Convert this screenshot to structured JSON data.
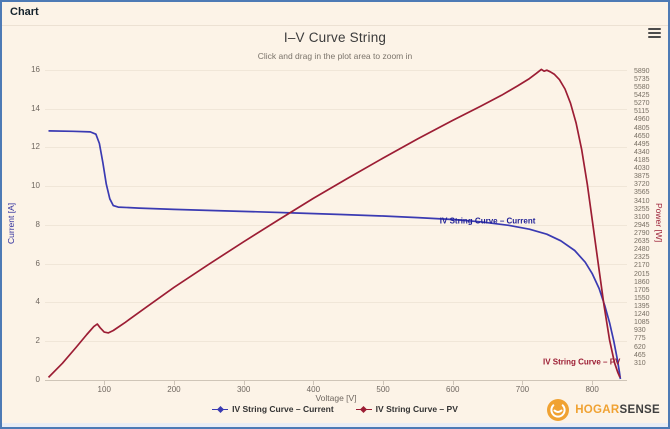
{
  "window": {
    "header_title": "Chart"
  },
  "chart": {
    "title": "I–V Curve String",
    "subtitle": "Click and drag in the plot area to zoom in"
  },
  "chart_data": {
    "type": "line",
    "title": "I–V Curve String",
    "subtitle": "Click and drag in the plot area to zoom in",
    "xlabel": "Voltage [V]",
    "xlim": [
      15,
      850
    ],
    "x_ticks": [
      100,
      200,
      300,
      400,
      500,
      600,
      700,
      800
    ],
    "grid": "horizontal",
    "legend_position": "bottom",
    "y_left": {
      "label": "Current [A]",
      "lim": [
        0,
        16.2
      ],
      "ticks": [
        16,
        14,
        12,
        10,
        8,
        6,
        4,
        2,
        0
      ],
      "title_color": "#2d2d9d"
    },
    "y_right": {
      "label": "Power [W]",
      "lim": [
        0,
        6000
      ],
      "ticks": [
        5890,
        5735,
        5580,
        5425,
        5270,
        5115,
        4960,
        4805,
        4650,
        4495,
        4340,
        4185,
        4030,
        3875,
        3720,
        3565,
        3410,
        3255,
        3100,
        2945,
        2790,
        2635,
        2480,
        2325,
        2170,
        2015,
        1860,
        1705,
        1550,
        1395,
        1240,
        1085,
        930,
        775,
        620,
        465,
        310
      ],
      "title_color": "#9c2038"
    },
    "series": [
      {
        "name": "IV String Curve – Current",
        "yaxis": "left",
        "color": "#3a3ab2",
        "points": [
          [
            20,
            12.85
          ],
          [
            55,
            12.83
          ],
          [
            80,
            12.8
          ],
          [
            88,
            12.68
          ],
          [
            93,
            12.2
          ],
          [
            98,
            11.2
          ],
          [
            103,
            10.1
          ],
          [
            108,
            9.35
          ],
          [
            113,
            9.0
          ],
          [
            120,
            8.92
          ],
          [
            150,
            8.87
          ],
          [
            200,
            8.8
          ],
          [
            260,
            8.74
          ],
          [
            320,
            8.68
          ],
          [
            380,
            8.61
          ],
          [
            440,
            8.54
          ],
          [
            500,
            8.46
          ],
          [
            550,
            8.38
          ],
          [
            600,
            8.28
          ],
          [
            640,
            8.16
          ],
          [
            680,
            7.98
          ],
          [
            710,
            7.78
          ],
          [
            735,
            7.52
          ],
          [
            755,
            7.18
          ],
          [
            775,
            6.68
          ],
          [
            790,
            6.08
          ],
          [
            800,
            5.5
          ],
          [
            810,
            4.72
          ],
          [
            818,
            3.85
          ],
          [
            825,
            2.95
          ],
          [
            831,
            2.0
          ],
          [
            836,
            1.1
          ],
          [
            839,
            0.45
          ],
          [
            840.5,
            0.05
          ]
        ]
      },
      {
        "name": "IV String Curve – PV",
        "yaxis": "right",
        "color": "#9c1d34",
        "points": [
          [
            20,
            50
          ],
          [
            40,
            320
          ],
          [
            60,
            630
          ],
          [
            75,
            870
          ],
          [
            85,
            1020
          ],
          [
            90,
            1070
          ],
          [
            94,
            1000
          ],
          [
            100,
            915
          ],
          [
            106,
            900
          ],
          [
            113,
            945
          ],
          [
            130,
            1100
          ],
          [
            160,
            1390
          ],
          [
            200,
            1770
          ],
          [
            250,
            2210
          ],
          [
            300,
            2640
          ],
          [
            350,
            3060
          ],
          [
            400,
            3470
          ],
          [
            450,
            3860
          ],
          [
            500,
            4240
          ],
          [
            550,
            4610
          ],
          [
            600,
            4960
          ],
          [
            640,
            5230
          ],
          [
            670,
            5440
          ],
          [
            693,
            5620
          ],
          [
            710,
            5760
          ],
          [
            720,
            5860
          ],
          [
            727,
            5935
          ],
          [
            731,
            5900
          ],
          [
            735,
            5920
          ],
          [
            740,
            5890
          ],
          [
            746,
            5840
          ],
          [
            753,
            5740
          ],
          [
            761,
            5560
          ],
          [
            769,
            5290
          ],
          [
            777,
            4910
          ],
          [
            785,
            4400
          ],
          [
            793,
            3740
          ],
          [
            801,
            2980
          ],
          [
            809,
            2200
          ],
          [
            817,
            1430
          ],
          [
            825,
            760
          ],
          [
            832,
            330
          ],
          [
            837,
            140
          ],
          [
            840,
            50
          ]
        ]
      }
    ],
    "annotations": [
      {
        "text": "IV String Curve – Current",
        "color": "#1f1f96",
        "v": 650,
        "y": 8.2
      },
      {
        "text": "IV String Curve – PV",
        "color": "#9c1d34",
        "v": 785,
        "y": 0.93
      }
    ]
  },
  "legend": {
    "items": [
      {
        "label": "IV String Curve – Current",
        "color": "#3a3ab2"
      },
      {
        "label": "IV String Curve – PV",
        "color": "#9c1d34"
      }
    ]
  },
  "brand": {
    "name_primary": "HOGAR",
    "name_secondary": "SENSE",
    "logo_color": "#f0a232"
  }
}
